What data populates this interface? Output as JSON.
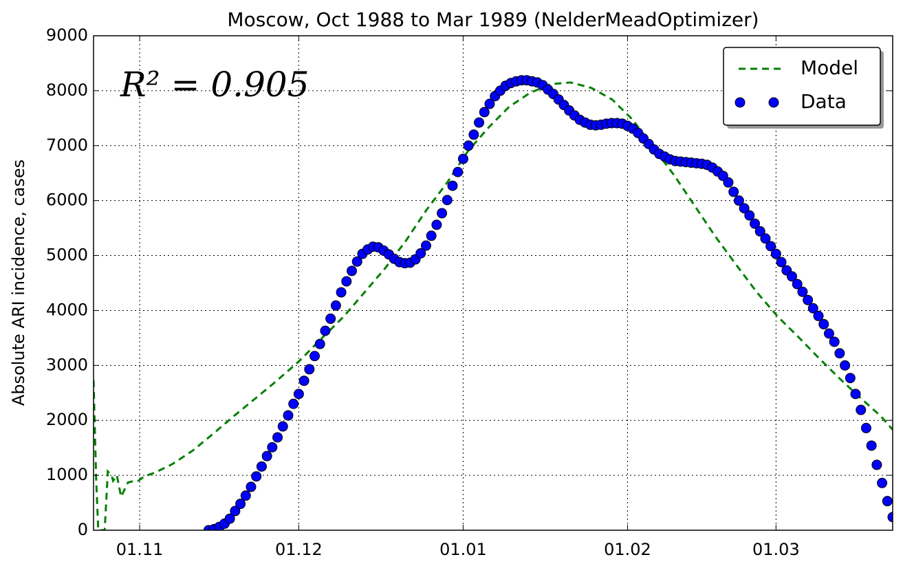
{
  "chart_data": {
    "type": "line",
    "title": "Moscow, Oct 1988 to Mar 1989 (NelderMeadOptimizer)",
    "y_label": "Absolute ARI incidence, cases",
    "annotation": "R² = 0.905",
    "xlim": [
      22.3,
      173.0
    ],
    "xticks": [
      {
        "value": 31,
        "label": "01.11"
      },
      {
        "value": 61,
        "label": "01.12"
      },
      {
        "value": 92,
        "label": "01.01"
      },
      {
        "value": 123,
        "label": "01.02"
      },
      {
        "value": 151,
        "label": "01.03"
      }
    ],
    "ylim": [
      0,
      9000
    ],
    "yticks": [
      0,
      1000,
      2000,
      3000,
      4000,
      5000,
      6000,
      7000,
      8000,
      9000
    ],
    "grid": true,
    "legend": "upper right",
    "series": [
      {
        "name": "Model",
        "type": "line",
        "dashed": true,
        "color": "#008000",
        "x": [
          22.3,
          22.8,
          23.2,
          23.7,
          24.4,
          25.0,
          25.7,
          26.0,
          26.7,
          27.5,
          28.1,
          28.8,
          29.7,
          30.6,
          31.9,
          33.9,
          37.1,
          41.0,
          44.9,
          48.8,
          52.7,
          56.6,
          61.1,
          65.6,
          69.5,
          73.4,
          77.3,
          81.2,
          85.1,
          89.0,
          92.9,
          96.8,
          100.7,
          104.6,
          108.5,
          112.3,
          116.2,
          120.1,
          124.0,
          127.9,
          131.8,
          135.7,
          139.6,
          143.5,
          147.4,
          151.3,
          155.2,
          159.0,
          162.9,
          166.8,
          170.7,
          173.0
        ],
        "values": [
          2730,
          900,
          0,
          0,
          0,
          1070,
          1000,
          900,
          1000,
          610,
          730,
          870,
          890,
          890,
          980,
          1050,
          1200,
          1450,
          1760,
          2080,
          2390,
          2700,
          3080,
          3520,
          3890,
          4330,
          4770,
          5270,
          5830,
          6330,
          6900,
          7330,
          7710,
          7960,
          8120,
          8150,
          8050,
          7840,
          7470,
          6960,
          6460,
          5900,
          5340,
          4830,
          4330,
          3890,
          3520,
          3140,
          2770,
          2420,
          2080,
          1830
        ]
      },
      {
        "name": "Data",
        "type": "scatter",
        "color": "#0000ff",
        "x": [
          44,
          45,
          46,
          47,
          48,
          49,
          50,
          51,
          52,
          53,
          54,
          55,
          56,
          57,
          58,
          59,
          60,
          61,
          62,
          63,
          64,
          65,
          66,
          67,
          68,
          69,
          70,
          71,
          72,
          73,
          74,
          75,
          76,
          77,
          78,
          79,
          80,
          81,
          82,
          83,
          84,
          85,
          86,
          87,
          88,
          89,
          90,
          91,
          92,
          93,
          94,
          95,
          96,
          97,
          98,
          99,
          100,
          101,
          102,
          103,
          104,
          105,
          106,
          107,
          108,
          109,
          110,
          111,
          112,
          113,
          114,
          115,
          116,
          117,
          118,
          119,
          120,
          121,
          122,
          123,
          124,
          125,
          126,
          127,
          128,
          129,
          130,
          131,
          132,
          133,
          134,
          135,
          136,
          137,
          138,
          139,
          140,
          141,
          142,
          143,
          144,
          145,
          146,
          147,
          148,
          149,
          150,
          151,
          152,
          153,
          154,
          155,
          156,
          157,
          158,
          159,
          160,
          161,
          162,
          163,
          164,
          165,
          166,
          167,
          168,
          169,
          170,
          171,
          172,
          173
        ],
        "values": [
          0,
          20,
          60,
          120,
          210,
          350,
          480,
          630,
          790,
          980,
          1160,
          1350,
          1510,
          1690,
          1890,
          2090,
          2300,
          2480,
          2720,
          2930,
          3170,
          3390,
          3630,
          3850,
          4090,
          4330,
          4530,
          4720,
          4890,
          5030,
          5110,
          5160,
          5150,
          5090,
          5020,
          4940,
          4880,
          4860,
          4870,
          4930,
          5040,
          5180,
          5360,
          5560,
          5770,
          6010,
          6270,
          6520,
          6760,
          7000,
          7200,
          7420,
          7610,
          7760,
          7900,
          8000,
          8090,
          8140,
          8170,
          8190,
          8190,
          8170,
          8150,
          8100,
          8020,
          7940,
          7840,
          7740,
          7640,
          7550,
          7470,
          7420,
          7380,
          7370,
          7380,
          7400,
          7410,
          7410,
          7400,
          7360,
          7310,
          7230,
          7130,
          7030,
          6930,
          6850,
          6800,
          6750,
          6720,
          6710,
          6700,
          6690,
          6680,
          6670,
          6650,
          6600,
          6530,
          6450,
          6330,
          6160,
          6000,
          5860,
          5730,
          5580,
          5440,
          5310,
          5170,
          5030,
          4880,
          4730,
          4620,
          4480,
          4340,
          4190,
          4040,
          3900,
          3750,
          3580,
          3430,
          3220,
          3000,
          2770,
          2480,
          2190,
          1860,
          1540,
          1190,
          860,
          530,
          240
        ]
      }
    ]
  }
}
